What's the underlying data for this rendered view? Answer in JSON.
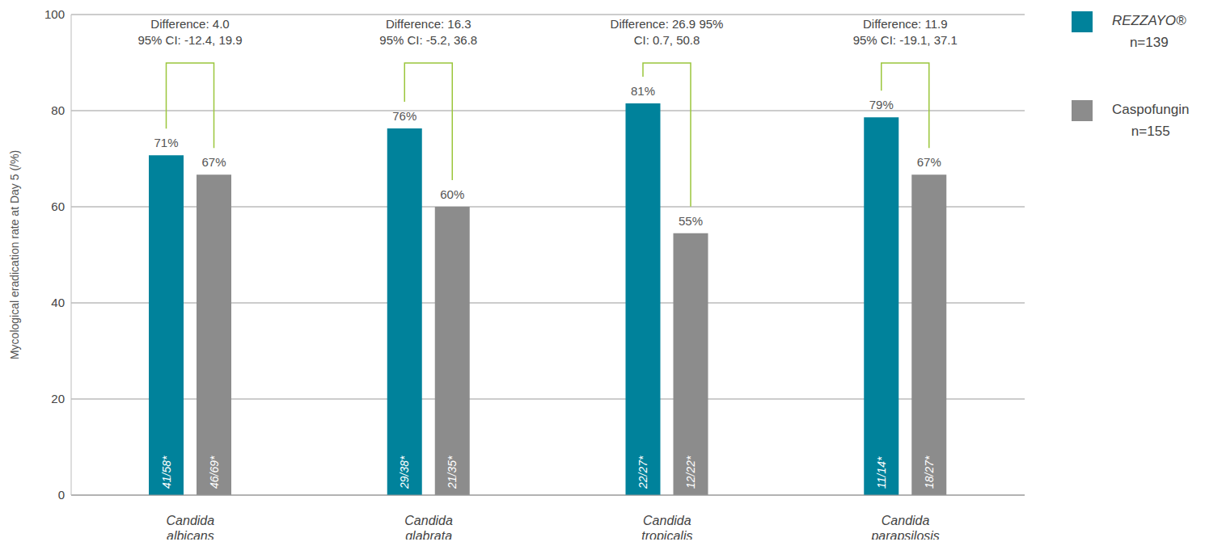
{
  "chart_data": {
    "type": "bar",
    "y_label": "Mycological eradication rate at Day 5 (/%)",
    "categories": [
      "Candida albicans",
      "Candida glabrata",
      "Candida tropicalis",
      "Candida parapsilosis"
    ],
    "series": [
      {
        "name": "REZZAYO®",
        "n_label": "n=139",
        "color": "#00829b",
        "values": [
          70.7,
          76.3,
          81.5,
          78.6
        ],
        "value_labels": [
          "71%",
          "76%",
          "81%",
          "79%"
        ],
        "fraction_labels": [
          "41/58*",
          "29/38*",
          "22/27*",
          "11/14*"
        ]
      },
      {
        "name": "Caspofungin",
        "n_label": "n=155",
        "color": "#8c8c8c",
        "values": [
          66.7,
          60,
          54.5,
          66.7
        ],
        "value_labels": [
          "67%",
          "60%",
          "55%",
          "67%"
        ],
        "fraction_labels": [
          "46/69*",
          "21/35*",
          "12/22*",
          "18/27*"
        ]
      }
    ],
    "annotations": [
      [
        "Difference: 4.0",
        "95% CI: -12.4, 19.9"
      ],
      [
        "Difference: 16.3",
        "95% CI: -5.2, 36.8"
      ],
      [
        "Difference: 26.9  95%",
        "CI: 0.7, 50.8"
      ],
      [
        "Difference: 11.9",
        "95% CI: -19.1, 37.1"
      ]
    ],
    "ylim": [
      0,
      100
    ],
    "yticks": [
      0,
      20,
      40,
      60,
      80,
      100
    ],
    "grid": true,
    "data_labels": true
  }
}
